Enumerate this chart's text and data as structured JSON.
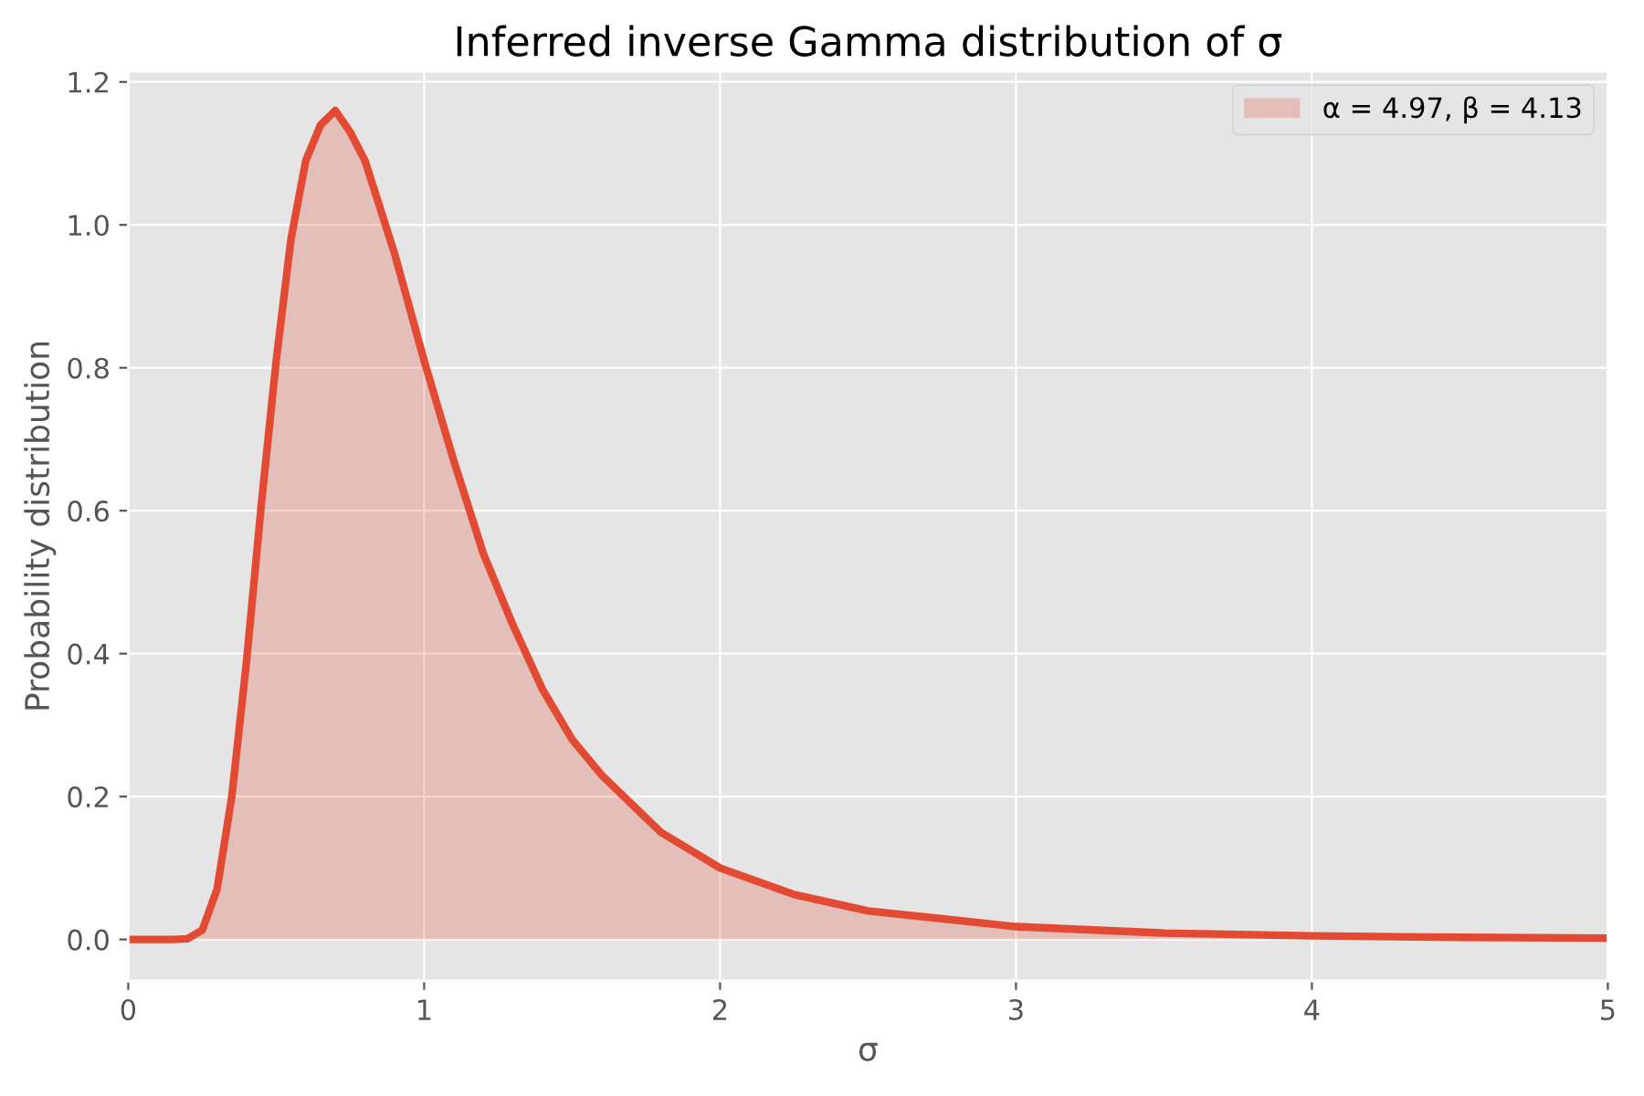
{
  "chart_data": {
    "type": "area",
    "title": "Inferred inverse Gamma distribution of σ",
    "xlabel": "σ",
    "ylabel": "Probability distribution",
    "x": [
      0,
      0.1,
      0.15,
      0.2,
      0.25,
      0.3,
      0.35,
      0.4,
      0.45,
      0.5,
      0.55,
      0.6,
      0.65,
      0.7,
      0.75,
      0.8,
      0.9,
      1.0,
      1.1,
      1.2,
      1.3,
      1.4,
      1.5,
      1.6,
      1.8,
      2.0,
      2.25,
      2.5,
      3.0,
      3.5,
      4.0,
      4.5,
      5.0
    ],
    "series": [
      {
        "name": "α = 4.97, β = 4.13",
        "color": "#e24a33",
        "values": [
          0,
          0,
          0,
          0.001,
          0.013,
          0.07,
          0.2,
          0.39,
          0.61,
          0.81,
          0.98,
          1.09,
          1.14,
          1.16,
          1.13,
          1.09,
          0.96,
          0.81,
          0.67,
          0.54,
          0.44,
          0.35,
          0.28,
          0.23,
          0.15,
          0.1,
          0.063,
          0.04,
          0.018,
          0.009,
          0.005,
          0.003,
          0.002
        ]
      }
    ],
    "xlim": [
      0,
      5
    ],
    "ylim": [
      -0.058,
      1.215
    ],
    "xticks": [
      0,
      1,
      2,
      3,
      4,
      5
    ],
    "yticks": [
      {
        "value": 0,
        "label": "0.0"
      },
      {
        "value": 0.2,
        "label": "0.2"
      },
      {
        "value": 0.4,
        "label": "0.4"
      },
      {
        "value": 0.6,
        "label": "0.6"
      },
      {
        "value": 0.8,
        "label": "0.8"
      },
      {
        "value": 1.0,
        "label": "1.0"
      },
      {
        "value": 1.2,
        "label": "1.2"
      }
    ],
    "grid": true,
    "legend": "top right"
  }
}
